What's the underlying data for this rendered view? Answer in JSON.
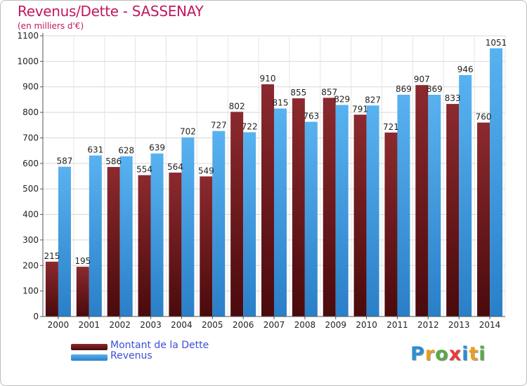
{
  "title": "Revenus/Dette - SASSENAY",
  "subtitle": "(en milliers d'€)",
  "brand": {
    "text": "Proxiti",
    "letter_colors": [
      "#2b8fd6",
      "#e8a020",
      "#5aa84a",
      "#e83a3a",
      "#2b8fd6",
      "#e8a020",
      "#5aa84a"
    ]
  },
  "chart_data": {
    "type": "bar",
    "title": "Revenus/Dette - SASSENAY",
    "subtitle": "(en milliers d'€)",
    "categories": [
      "2000",
      "2001",
      "2002",
      "2003",
      "2004",
      "2005",
      "2006",
      "2007",
      "2008",
      "2009",
      "2010",
      "2011",
      "2012",
      "2013",
      "2014"
    ],
    "series": [
      {
        "name": "Montant de la Dette",
        "color": "#7a1f23",
        "values": [
          215,
          195,
          586,
          554,
          564,
          549,
          802,
          910,
          855,
          857,
          791,
          721,
          907,
          833,
          760
        ],
        "labels": [
          "215",
          "195",
          "586",
          "554",
          "564",
          "549",
          "802",
          "910",
          "855",
          "857",
          "791",
          "721",
          "907",
          "833",
          "760"
        ]
      },
      {
        "name": "Revenus",
        "color": "#3fa0e6",
        "values": [
          587,
          631,
          628,
          639,
          702,
          727,
          722,
          815,
          763,
          829,
          827,
          869,
          869,
          946,
          1051
        ],
        "labels": [
          "587",
          "631",
          "628",
          "639",
          "702",
          "727",
          "722",
          "815",
          "763",
          "829",
          "827",
          "869",
          "869",
          "946",
          "1051"
        ]
      }
    ],
    "ylim": [
      0,
      1100
    ],
    "yticks": [
      0,
      100,
      200,
      300,
      400,
      500,
      600,
      700,
      800,
      900,
      1000,
      1100
    ],
    "xlabel": "",
    "ylabel": "",
    "grid": true,
    "legend": "bottom-left"
  }
}
